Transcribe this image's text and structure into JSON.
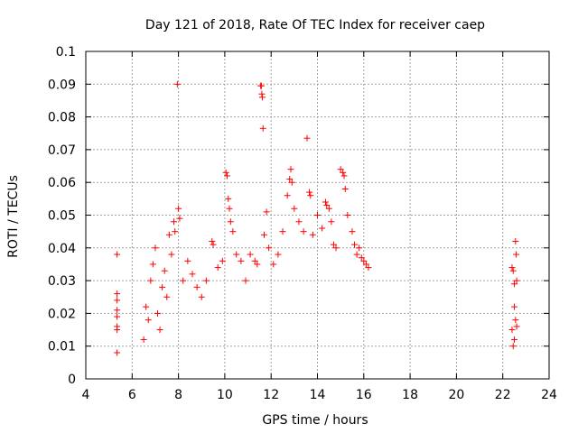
{
  "chart_data": {
    "type": "scatter",
    "title": "Day 121 of 2018, Rate Of TEC Index for receiver caep",
    "xlabel": "GPS time / hours",
    "ylabel": "ROTI / TECUs",
    "xlim": [
      4,
      24
    ],
    "ylim": [
      0,
      0.1
    ],
    "xticks": [
      4,
      6,
      8,
      10,
      12,
      14,
      16,
      18,
      20,
      22,
      24
    ],
    "xtick_labels": [
      "4",
      "6",
      "8",
      "10",
      "12",
      "14",
      "16",
      "18",
      "20",
      "22",
      "24"
    ],
    "yticks": [
      0,
      0.01,
      0.02,
      0.03,
      0.04,
      0.05,
      0.06,
      0.07,
      0.08,
      0.09,
      0.1
    ],
    "ytick_labels": [
      "0",
      "0.01",
      "0.02",
      "0.03",
      "0.04",
      "0.05",
      "0.06",
      "0.07",
      "0.08",
      "0.09",
      "0.1"
    ],
    "grid": true,
    "marker": "plus",
    "marker_color": "#ff0000",
    "series": [
      {
        "name": "ROTI",
        "points": [
          [
            5.35,
            0.038
          ],
          [
            5.35,
            0.026
          ],
          [
            5.35,
            0.024
          ],
          [
            5.35,
            0.021
          ],
          [
            5.35,
            0.019
          ],
          [
            5.35,
            0.016
          ],
          [
            5.35,
            0.015
          ],
          [
            5.35,
            0.008
          ],
          [
            6.5,
            0.012
          ],
          [
            6.6,
            0.022
          ],
          [
            6.7,
            0.018
          ],
          [
            6.8,
            0.03
          ],
          [
            6.9,
            0.035
          ],
          [
            7.0,
            0.04
          ],
          [
            7.1,
            0.02
          ],
          [
            7.2,
            0.015
          ],
          [
            7.3,
            0.028
          ],
          [
            7.4,
            0.033
          ],
          [
            7.5,
            0.025
          ],
          [
            7.6,
            0.044
          ],
          [
            7.7,
            0.038
          ],
          [
            7.8,
            0.048
          ],
          [
            7.85,
            0.045
          ],
          [
            7.95,
            0.09
          ],
          [
            8.0,
            0.052
          ],
          [
            8.05,
            0.049
          ],
          [
            8.2,
            0.03
          ],
          [
            8.4,
            0.036
          ],
          [
            8.6,
            0.032
          ],
          [
            8.8,
            0.028
          ],
          [
            9.0,
            0.025
          ],
          [
            9.2,
            0.03
          ],
          [
            9.45,
            0.042
          ],
          [
            9.5,
            0.041
          ],
          [
            9.7,
            0.034
          ],
          [
            9.9,
            0.036
          ],
          [
            10.05,
            0.063
          ],
          [
            10.1,
            0.062
          ],
          [
            10.15,
            0.055
          ],
          [
            10.2,
            0.052
          ],
          [
            10.25,
            0.048
          ],
          [
            10.35,
            0.045
          ],
          [
            10.5,
            0.038
          ],
          [
            10.7,
            0.036
          ],
          [
            10.9,
            0.03
          ],
          [
            11.1,
            0.038
          ],
          [
            11.3,
            0.036
          ],
          [
            11.4,
            0.035
          ],
          [
            11.55,
            0.0895
          ],
          [
            11.58,
            0.0895
          ],
          [
            11.6,
            0.087
          ],
          [
            11.62,
            0.086
          ],
          [
            11.65,
            0.0765
          ],
          [
            11.7,
            0.044
          ],
          [
            11.8,
            0.051
          ],
          [
            11.9,
            0.04
          ],
          [
            12.1,
            0.035
          ],
          [
            12.3,
            0.038
          ],
          [
            12.5,
            0.045
          ],
          [
            12.7,
            0.056
          ],
          [
            12.8,
            0.061
          ],
          [
            12.85,
            0.064
          ],
          [
            12.9,
            0.06
          ],
          [
            13.0,
            0.052
          ],
          [
            13.2,
            0.048
          ],
          [
            13.4,
            0.045
          ],
          [
            13.55,
            0.0735
          ],
          [
            13.65,
            0.057
          ],
          [
            13.7,
            0.056
          ],
          [
            13.8,
            0.044
          ],
          [
            14.0,
            0.05
          ],
          [
            14.2,
            0.046
          ],
          [
            14.35,
            0.054
          ],
          [
            14.4,
            0.053
          ],
          [
            14.5,
            0.052
          ],
          [
            14.6,
            0.048
          ],
          [
            14.7,
            0.041
          ],
          [
            14.8,
            0.04
          ],
          [
            15.0,
            0.064
          ],
          [
            15.1,
            0.063
          ],
          [
            15.15,
            0.062
          ],
          [
            15.2,
            0.058
          ],
          [
            15.3,
            0.05
          ],
          [
            15.5,
            0.045
          ],
          [
            15.6,
            0.041
          ],
          [
            15.7,
            0.038
          ],
          [
            15.8,
            0.04
          ],
          [
            15.9,
            0.037
          ],
          [
            16.0,
            0.036
          ],
          [
            16.1,
            0.035
          ],
          [
            16.2,
            0.034
          ],
          [
            22.4,
            0.034
          ],
          [
            22.45,
            0.033
          ],
          [
            22.5,
            0.029
          ],
          [
            22.55,
            0.042
          ],
          [
            22.58,
            0.038
          ],
          [
            22.6,
            0.03
          ],
          [
            22.5,
            0.012
          ],
          [
            22.45,
            0.01
          ],
          [
            22.55,
            0.018
          ],
          [
            22.5,
            0.022
          ],
          [
            22.6,
            0.016
          ],
          [
            22.4,
            0.015
          ]
        ]
      }
    ]
  }
}
